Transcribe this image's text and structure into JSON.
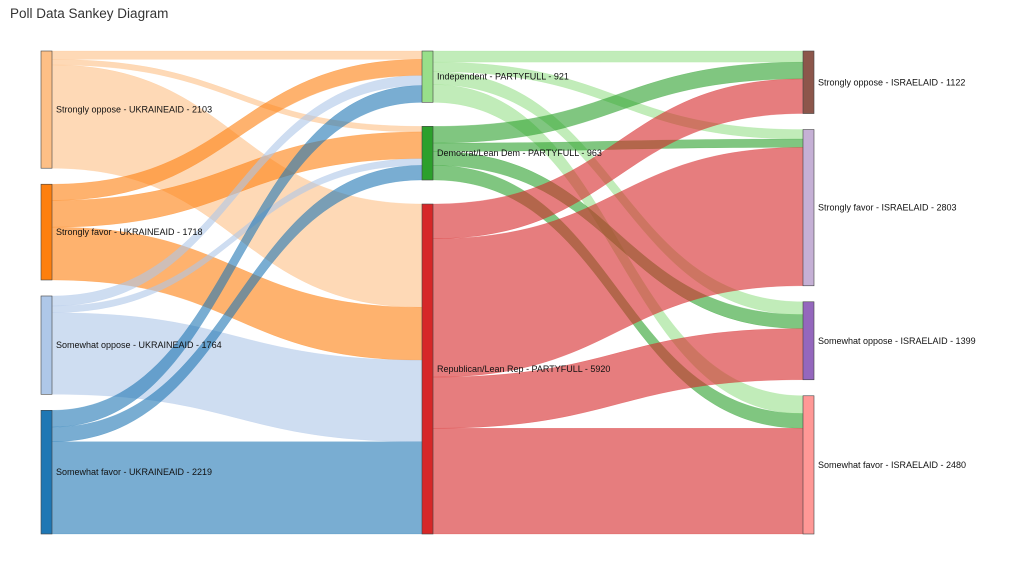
{
  "page": {
    "title": "Poll Data Sankey Diagram"
  },
  "chart_data": {
    "type": "sankey",
    "title": "Poll Data Sankey Diagram",
    "columns": [
      {
        "nodes": [
          {
            "key": "uk_strongly_oppose",
            "label": "Strongly oppose - UKRAINEAID - 2103",
            "value": 2103,
            "color": "#fdbf86"
          },
          {
            "key": "uk_strongly_favor",
            "label": "Strongly favor - UKRAINEAID - 1718",
            "value": 1718,
            "color": "#fd7f0e"
          },
          {
            "key": "uk_somewhat_oppose",
            "label": "Somewhat oppose - UKRAINEAID - 1764",
            "value": 1764,
            "color": "#aec7e8"
          },
          {
            "key": "uk_somewhat_favor",
            "label": "Somewhat favor - UKRAINEAID - 2219",
            "value": 2219,
            "color": "#1f77b4"
          }
        ]
      },
      {
        "nodes": [
          {
            "key": "p_independent",
            "label": "Independent - PARTYFULL - 921",
            "value": 921,
            "color": "#98df8a"
          },
          {
            "key": "p_democrat",
            "label": "Democrat/Lean Dem - PARTYFULL - 963",
            "value": 963,
            "color": "#2ca02c"
          },
          {
            "key": "p_republican",
            "label": "Republican/Lean Rep - PARTYFULL - 5920",
            "value": 5920,
            "color": "#d62728"
          }
        ]
      },
      {
        "nodes": [
          {
            "key": "is_strongly_oppose",
            "label": "Strongly oppose - ISRAELAID - 1122",
            "value": 1122,
            "color": "#8c564b"
          },
          {
            "key": "is_strongly_favor",
            "label": "Strongly favor - ISRAELAID - 2803",
            "value": 2803,
            "color": "#c5b0d5"
          },
          {
            "key": "is_somewhat_oppose",
            "label": "Somewhat oppose - ISRAELAID - 1399",
            "value": 1399,
            "color": "#9467bd"
          },
          {
            "key": "is_somewhat_favor",
            "label": "Somewhat favor - ISRAELAID - 2480",
            "value": 2480,
            "color": "#ff9896"
          }
        ]
      }
    ],
    "links": [
      {
        "source": "uk_strongly_oppose",
        "target": "p_independent",
        "value": 150
      },
      {
        "source": "uk_strongly_oppose",
        "target": "p_democrat",
        "value": 100
      },
      {
        "source": "uk_strongly_oppose",
        "target": "p_republican",
        "value": 1853
      },
      {
        "source": "uk_strongly_favor",
        "target": "p_independent",
        "value": 290
      },
      {
        "source": "uk_strongly_favor",
        "target": "p_democrat",
        "value": 480
      },
      {
        "source": "uk_strongly_favor",
        "target": "p_republican",
        "value": 948
      },
      {
        "source": "uk_somewhat_oppose",
        "target": "p_independent",
        "value": 180
      },
      {
        "source": "uk_somewhat_oppose",
        "target": "p_democrat",
        "value": 120
      },
      {
        "source": "uk_somewhat_oppose",
        "target": "p_republican",
        "value": 1464
      },
      {
        "source": "uk_somewhat_favor",
        "target": "p_independent",
        "value": 301
      },
      {
        "source": "uk_somewhat_favor",
        "target": "p_democrat",
        "value": 263
      },
      {
        "source": "uk_somewhat_favor",
        "target": "p_republican",
        "value": 1655
      },
      {
        "source": "p_independent",
        "target": "is_strongly_oppose",
        "value": 200
      },
      {
        "source": "p_independent",
        "target": "is_strongly_favor",
        "value": 170
      },
      {
        "source": "p_independent",
        "target": "is_somewhat_oppose",
        "value": 231
      },
      {
        "source": "p_independent",
        "target": "is_somewhat_favor",
        "value": 320
      },
      {
        "source": "p_democrat",
        "target": "is_strongly_oppose",
        "value": 300
      },
      {
        "source": "p_democrat",
        "target": "is_strongly_favor",
        "value": 150
      },
      {
        "source": "p_democrat",
        "target": "is_somewhat_oppose",
        "value": 250
      },
      {
        "source": "p_democrat",
        "target": "is_somewhat_favor",
        "value": 263
      },
      {
        "source": "p_republican",
        "target": "is_strongly_oppose",
        "value": 622
      },
      {
        "source": "p_republican",
        "target": "is_strongly_favor",
        "value": 2483
      },
      {
        "source": "p_republican",
        "target": "is_somewhat_oppose",
        "value": 918
      },
      {
        "source": "p_republican",
        "target": "is_somewhat_favor",
        "value": 1897
      }
    ]
  }
}
